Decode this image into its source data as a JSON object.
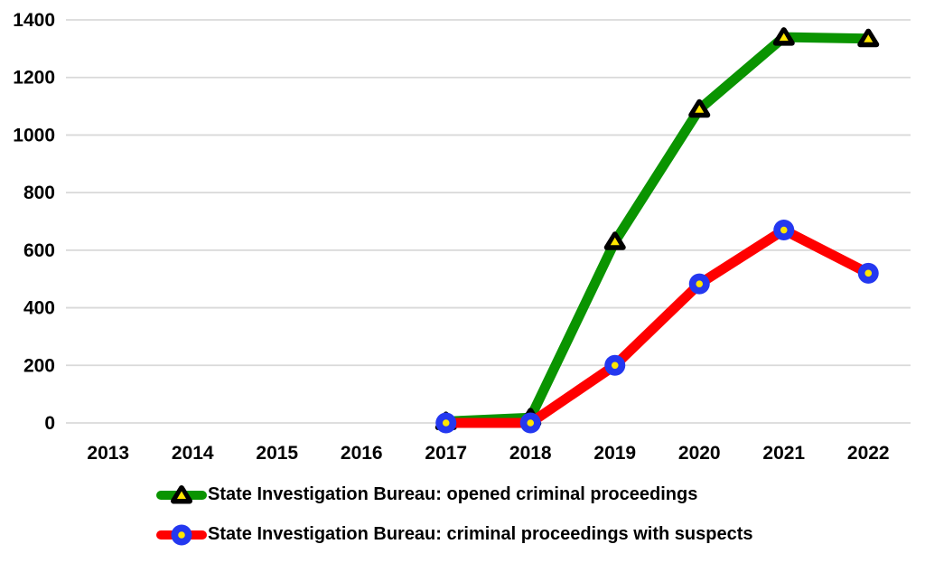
{
  "chart_data": {
    "type": "line",
    "title": "",
    "xlabel": "",
    "ylabel": "",
    "categories": [
      "2013",
      "2014",
      "2015",
      "2016",
      "2017",
      "2018",
      "2019",
      "2020",
      "2021",
      "2022"
    ],
    "series": [
      {
        "name": "State Investigation Bureau: opened criminal proceedings",
        "line_color": "#0a9400",
        "marker": "triangle",
        "marker_edge_color": "#000000",
        "marker_center_color": "#ffe600",
        "values": [
          null,
          null,
          null,
          null,
          5,
          18,
          630,
          1090,
          1340,
          1335
        ]
      },
      {
        "name": "State Investigation Bureau: criminal proceedings with suspects",
        "line_color": "#ff0000",
        "marker": "circle",
        "marker_edge_color": "#2438f0",
        "marker_center_color": "#ffe600",
        "values": [
          null,
          null,
          null,
          null,
          0,
          0,
          200,
          483,
          670,
          520
        ]
      }
    ],
    "ylim": [
      0,
      1400
    ],
    "yticks": [
      0,
      200,
      400,
      600,
      800,
      1000,
      1200,
      1400
    ],
    "grid": true,
    "gridline_color": "#d9d9d9",
    "tick_label_color": "#000000",
    "legend_position": "bottom-left"
  }
}
